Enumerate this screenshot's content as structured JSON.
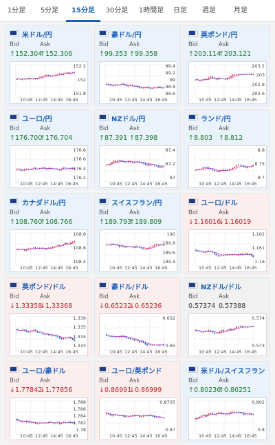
{
  "tabs": [
    "1分足",
    "5分足",
    "15分足",
    "30分足",
    "1時間足",
    "日足",
    "週足",
    "月足"
  ],
  "active_tab": "15分足",
  "bid_label": "Bid",
  "ask_label": "Ask",
  "x_ticks": [
    "10:45",
    "12:45",
    "14:45",
    "16:45"
  ],
  "pairs": [
    {
      "name": "米ドル/円",
      "trend": "up",
      "bid": "↑152.304",
      "ask": "↑152.306",
      "y_ticks": [
        "152.2",
        "152",
        "151.8"
      ]
    },
    {
      "name": "豪ドル/円",
      "trend": "up",
      "bid": "↑99.353",
      "ask": "↑99.358",
      "y_ticks": [
        "99.4",
        "99.2",
        "99",
        "98.8",
        "98.6"
      ]
    },
    {
      "name": "英ポンド/円",
      "trend": "up",
      "bid": "↑203.114",
      "ask": "↑203.121",
      "y_ticks": [
        "203.2",
        "203",
        "202.8",
        "202.6"
      ]
    },
    {
      "name": "ユーロ/円",
      "trend": "up",
      "bid": "↑176.700",
      "ask": "↑176.704",
      "y_ticks": [
        "176.8",
        "176.6",
        "176.4",
        "176.2"
      ]
    },
    {
      "name": "NZドル/円",
      "trend": "up",
      "bid": "↑87.391",
      "ask": "↑87.398",
      "y_ticks": [
        "87.4",
        "87.2",
        "87"
      ]
    },
    {
      "name": "ランド/円",
      "trend": "up",
      "bid": "↑8.803",
      "ask": "↑8.812",
      "y_ticks": [
        "8.8",
        "8.75",
        "8.7"
      ]
    },
    {
      "name": "カナダドル/円",
      "trend": "up",
      "bid": "↑108.760",
      "ask": "↑108.766",
      "y_ticks": [
        "108.8",
        "108.6",
        "108.4"
      ]
    },
    {
      "name": "スイスフラン/円",
      "trend": "up",
      "bid": "↑189.793",
      "ask": "↑189.809",
      "y_ticks": [
        "190",
        "189.8",
        "189.6",
        "189.4"
      ]
    },
    {
      "name": "ユーロ/ドル",
      "trend": "down",
      "bid": "↓1.16016",
      "ask": "↓1.16019",
      "y_ticks": [
        "1.162",
        "1.161",
        "1.16"
      ]
    },
    {
      "name": "英ポンド/ドル",
      "trend": "down",
      "bid": "↓1.33358",
      "ask": "↓1.33368",
      "y_ticks": [
        "1.336",
        "1.335",
        "1.334",
        "1.333"
      ]
    },
    {
      "name": "豪ドル/ドル",
      "trend": "down",
      "bid": "↓0.65232",
      "ask": "↓0.65236",
      "y_ticks": [
        "0.652",
        "0.65"
      ]
    },
    {
      "name": "NZドル/ドル",
      "trend": "neutral",
      "bid": "0.57374",
      "ask": "0.57388",
      "y_ticks": [
        "0.574",
        "0.573"
      ]
    },
    {
      "name": "ユーロ/豪ドル",
      "trend": "down",
      "bid": "↓1.77842",
      "ask": "↓1.77856",
      "y_ticks": [
        "1.788",
        "1.786",
        "1.784",
        "1.782",
        "1.78"
      ]
    },
    {
      "name": "ユーロ/英ポンド",
      "trend": "down",
      "bid": "↓0.86991",
      "ask": "↓0.86999",
      "y_ticks": [
        "0.8705",
        "0.87"
      ]
    },
    {
      "name": "米ドル/スイスフラン",
      "trend": "up",
      "bid": "↑0.80236",
      "ask": "↑0.80251",
      "y_ticks": [
        "0.802",
        "0.8"
      ]
    }
  ],
  "colors": {
    "accent": "#1a5fb4",
    "up_bg": "#eaf3fc",
    "down_bg": "#fdeeee",
    "candle_up": "#d9342b",
    "candle_down": "#1a4fb0",
    "ma_line": "#c23bd6"
  }
}
